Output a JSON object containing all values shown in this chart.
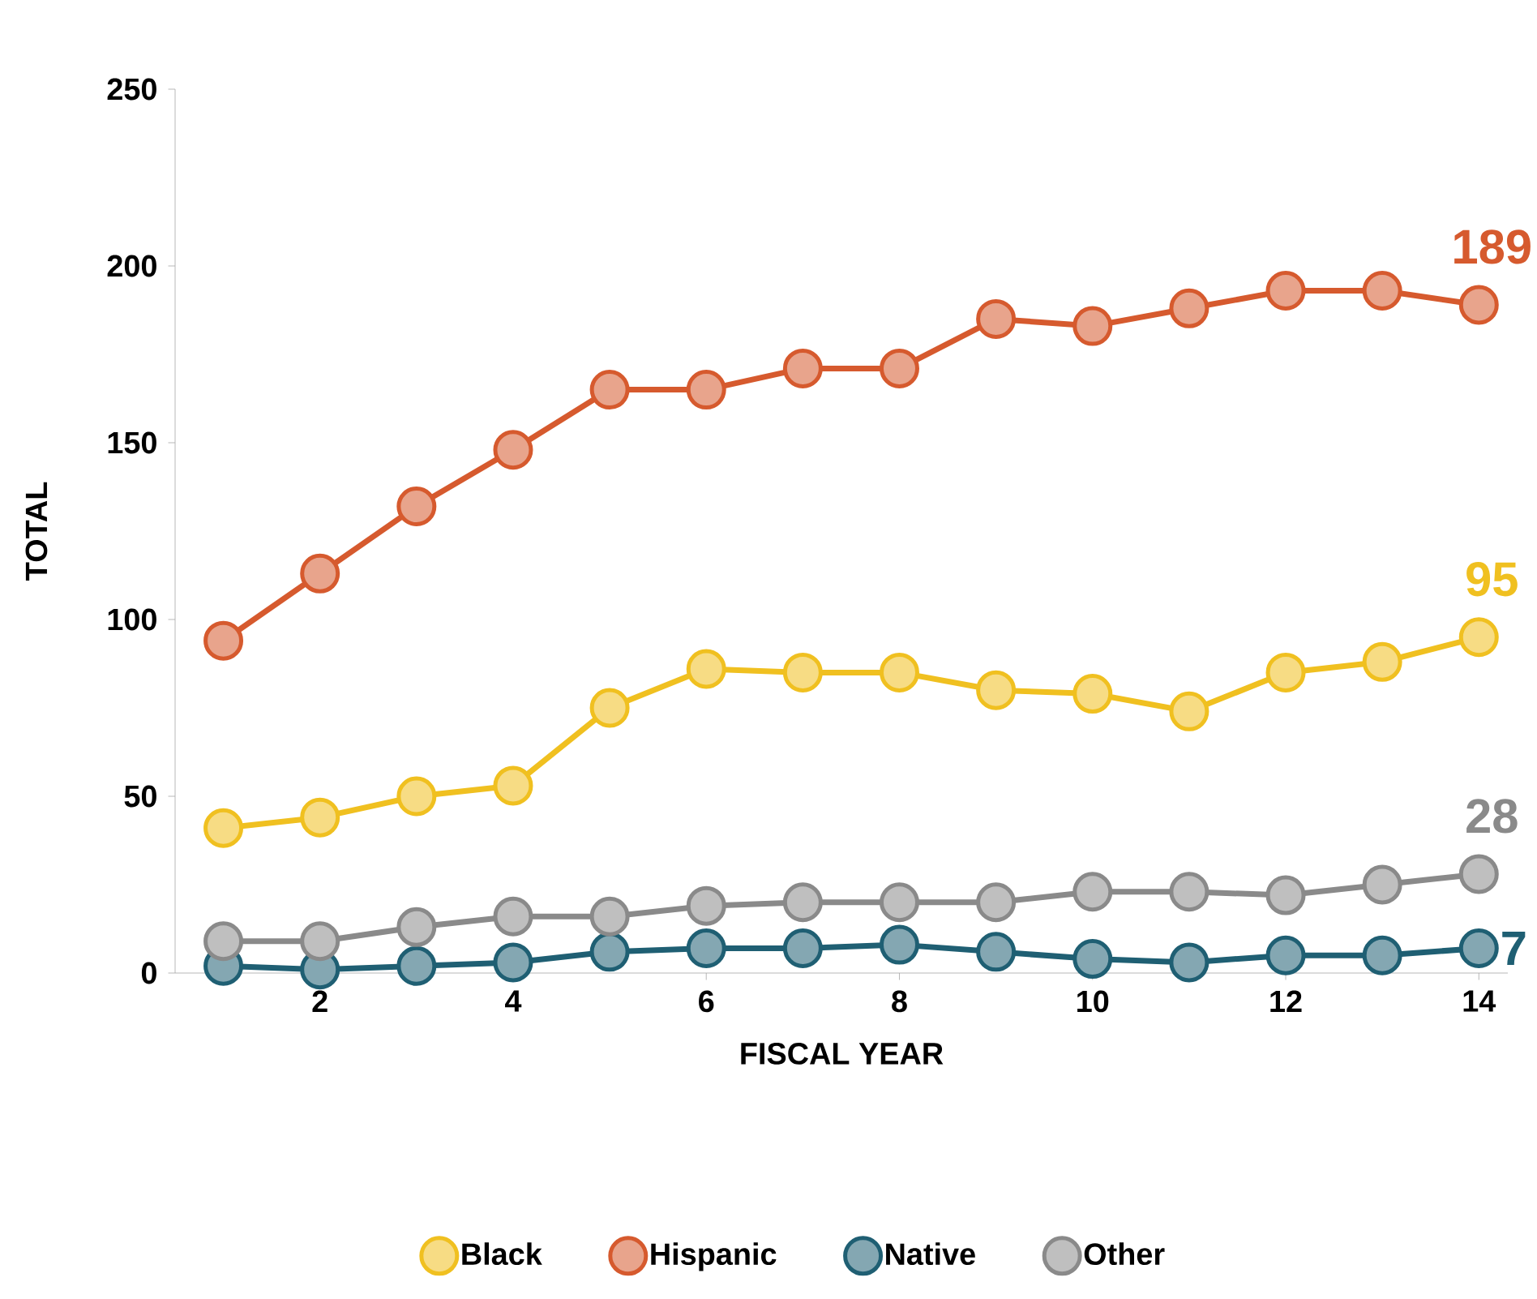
{
  "chart_data": {
    "type": "line",
    "xlabel": "FISCAL YEAR",
    "ylabel": "TOTAL",
    "x": [
      1,
      2,
      3,
      4,
      5,
      6,
      7,
      8,
      9,
      10,
      11,
      12,
      13,
      14
    ],
    "series": [
      {
        "name": "Black",
        "color": "#f0c020",
        "values": [
          41,
          44,
          50,
          53,
          75,
          86,
          85,
          85,
          80,
          79,
          74,
          85,
          88,
          95
        ],
        "value_labels": [
          null,
          null,
          null,
          null,
          null,
          null,
          null,
          null,
          null,
          null,
          null,
          null,
          null,
          "95"
        ]
      },
      {
        "name": "Hispanic",
        "color": "#d65a2e",
        "values": [
          94,
          113,
          132,
          148,
          165,
          165,
          171,
          171,
          185,
          183,
          188,
          193,
          193,
          189
        ],
        "value_labels": [
          null,
          null,
          null,
          null,
          null,
          null,
          null,
          null,
          null,
          null,
          null,
          null,
          null,
          "189"
        ]
      },
      {
        "name": "Native",
        "color": "#1f5f73",
        "values": [
          2,
          1,
          2,
          3,
          6,
          7,
          7,
          8,
          6,
          4,
          3,
          5,
          5,
          7
        ],
        "value_labels": [
          null,
          null,
          null,
          null,
          null,
          null,
          null,
          null,
          null,
          null,
          null,
          null,
          null,
          "7"
        ]
      },
      {
        "name": "Other",
        "color": "#8a8a8a",
        "values": [
          9,
          9,
          13,
          16,
          16,
          19,
          20,
          20,
          20,
          23,
          23,
          22,
          25,
          28
        ],
        "value_labels": [
          null,
          null,
          null,
          null,
          null,
          null,
          null,
          null,
          null,
          null,
          null,
          null,
          null,
          "28"
        ]
      }
    ],
    "xlim": [
      0.5,
      14.3
    ],
    "ylim": [
      0,
      250
    ],
    "xticks": [
      2,
      4,
      6,
      8,
      10,
      12,
      14
    ],
    "yticks": [
      0,
      50,
      100,
      150,
      200,
      250
    ],
    "grid": false,
    "legend": "bottom",
    "marker": "circle",
    "line_style": "solid"
  }
}
